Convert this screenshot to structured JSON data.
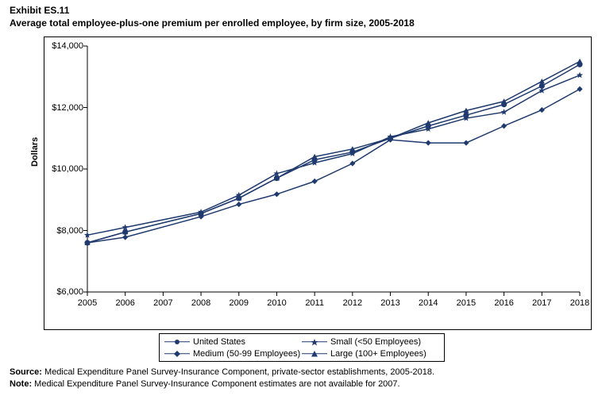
{
  "exhibit_label": "Exhibit ES.11",
  "title": "Average total employee-plus-one premium per enrolled employee, by firm size, 2005-2018",
  "y_axis_title": "Dollars",
  "source_label": "Source:",
  "source_text": " Medical Expenditure Panel Survey-Insurance Component, private-sector establishments, 2005-2018.",
  "note_label": "Note:",
  "note_text": " Medical Expenditure Panel Survey-Insurance Component estimates are not available for 2007.",
  "chart": {
    "type": "line",
    "background_color": "#ffffff",
    "border_color": "#000000",
    "line_color": "#1f3a6e",
    "marker_size": 5,
    "line_width": 1.5,
    "font_family": "Arial",
    "label_fontsize": 11,
    "title_fontsize": 12,
    "ylim": [
      6000,
      14000
    ],
    "ytick_step": 2000,
    "yticks": [
      6000,
      8000,
      10000,
      12000,
      14000
    ],
    "ytick_labels": [
      "$6,000",
      "$8,000",
      "$10,000",
      "$12,000",
      "$14,000"
    ],
    "xticks": [
      2005,
      2006,
      2007,
      2008,
      2009,
      2010,
      2011,
      2012,
      2013,
      2014,
      2015,
      2016,
      2017,
      2018
    ],
    "series": [
      {
        "name": "United States",
        "marker": "circle",
        "years": [
          2005,
          2006,
          2008,
          2009,
          2010,
          2011,
          2012,
          2013,
          2014,
          2015,
          2016,
          2017,
          2018
        ],
        "values": [
          7600,
          7950,
          8550,
          9050,
          9700,
          10300,
          10550,
          11000,
          11400,
          11750,
          12100,
          12700,
          13400
        ]
      },
      {
        "name": "Small (<50 Employees)",
        "marker": "star",
        "years": [
          2005,
          2006,
          2008,
          2009,
          2010,
          2011,
          2012,
          2013,
          2014,
          2015,
          2016,
          2017,
          2018
        ],
        "values": [
          7850,
          8100,
          8600,
          9150,
          9850,
          10200,
          10500,
          11050,
          11300,
          11650,
          11850,
          12550,
          13050
        ]
      },
      {
        "name": "Medium (50-99 Employees)",
        "marker": "diamond",
        "years": [
          2005,
          2006,
          2008,
          2009,
          2010,
          2011,
          2012,
          2013,
          2014,
          2015,
          2016,
          2017,
          2018
        ],
        "values": [
          7600,
          7780,
          8450,
          8850,
          9180,
          9600,
          10180,
          10950,
          10850,
          10850,
          11400,
          11920,
          12600
        ]
      },
      {
        "name": "Large (100+ Employees)",
        "marker": "triangle",
        "years": [
          2005,
          2006,
          2008,
          2009,
          2010,
          2011,
          2012,
          2013,
          2014,
          2015,
          2016,
          2017,
          2018
        ],
        "values": [
          7600,
          7950,
          8550,
          9050,
          9700,
          10400,
          10650,
          11000,
          11500,
          11900,
          12200,
          12850,
          13500
        ]
      }
    ],
    "legend": {
      "items": [
        "United States",
        "Small (<50 Employees)",
        "Medium (50-99 Employees)",
        "Large (100+ Employees)"
      ]
    }
  }
}
